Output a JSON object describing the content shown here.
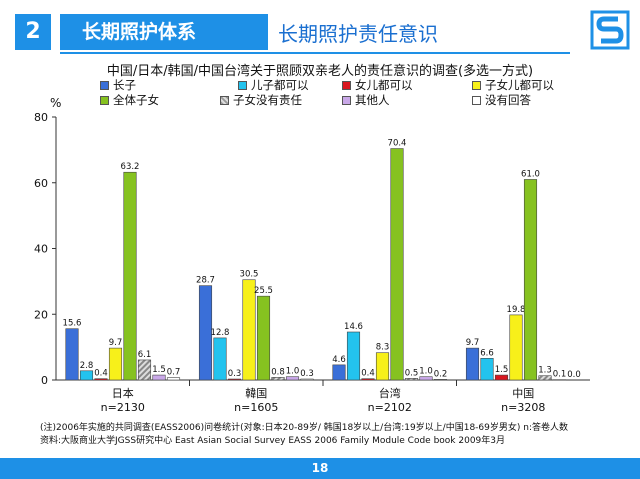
{
  "header": {
    "badge": "2",
    "section": "长期照护体系",
    "title": "长期照护责任意识"
  },
  "colors": {
    "accent": "#1e90e6",
    "series": [
      "#3a6fd8",
      "#23c3ee",
      "#d9171f",
      "#f7f01a",
      "#86c220",
      "#c9c9c9",
      "#c9a8e8",
      "#ffffff"
    ]
  },
  "chart_data": {
    "type": "bar",
    "title": "中国/日本/韩国/中国台湾关于照顾双亲老人的责任意识的调查(多选一方式)",
    "ylabel": "%",
    "ylim": [
      0,
      80
    ],
    "yticks": [
      "0",
      "20",
      "40",
      "60",
      "80"
    ],
    "categories": [
      "日本",
      "韓国",
      "台湾",
      "中国"
    ],
    "sublabels": [
      "n=2130",
      "n=1605",
      "n=2102",
      "n=3208"
    ],
    "series": [
      {
        "name": "长子",
        "values": [
          15.6,
          28.7,
          4.6,
          9.7
        ]
      },
      {
        "name": "儿子都可以",
        "values": [
          2.8,
          12.8,
          14.6,
          6.6
        ]
      },
      {
        "name": "女儿都可以",
        "values": [
          0.4,
          0.3,
          0.4,
          1.5
        ]
      },
      {
        "name": "子女儿都可以",
        "values": [
          9.7,
          30.5,
          8.3,
          19.8
        ]
      },
      {
        "name": "全体子女",
        "values": [
          63.2,
          25.5,
          70.4,
          61.0
        ]
      },
      {
        "name": "子女没有责任",
        "values": [
          6.1,
          0.8,
          0.5,
          1.3
        ]
      },
      {
        "name": "其他人",
        "values": [
          1.5,
          1.0,
          1.0,
          0.1
        ]
      },
      {
        "name": "没有回答",
        "values": [
          0.7,
          0.3,
          0.2,
          0.0
        ]
      }
    ],
    "labels": [
      [
        "15.6",
        "28.7",
        "4.6",
        "9.7"
      ],
      [
        "2.8",
        "12.8",
        "14.6",
        "6.6"
      ],
      [
        "0.4",
        "0.3",
        "0.4",
        "1.5"
      ],
      [
        "9.7",
        "30.5",
        "8.3",
        "19.8"
      ],
      [
        "63.2",
        "25.5",
        "70.4",
        "61.0"
      ],
      [
        "6.1",
        "0.8",
        "0.5",
        "1.3"
      ],
      [
        "1.5",
        "1.0",
        "1.0",
        "0.1"
      ],
      [
        "0.7",
        "0.3",
        "0.2",
        "0.0"
      ]
    ],
    "grid": false,
    "legend_position": "top"
  },
  "notes": {
    "line1": "(注)2006年实施的共同调查(EASS2006)问卷统计(对象:日本20-89岁/ 韩国18岁以上/台湾:19岁以上/中国18-69岁男女) n:答卷人数",
    "line2": "资料:大阪商业大学JGSS研究中心 East Asian Social Survey EASS 2006 Family Module Code book 2009年3月"
  },
  "footer": {
    "page": "18"
  }
}
